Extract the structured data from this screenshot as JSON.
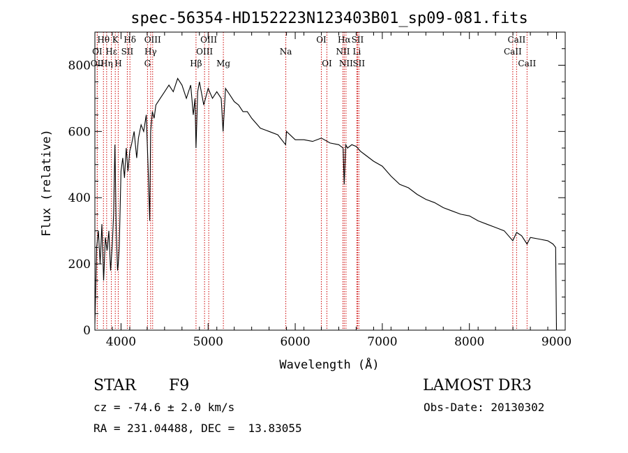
{
  "chart_data": {
    "type": "line",
    "title": "spec-56354-HD152223N123403B01_sp09-081.fits",
    "xlabel": "Wavelength (Å)",
    "ylabel": "Flux (relative)",
    "xlim": [
      3700,
      9100
    ],
    "ylim": [
      0,
      900
    ],
    "xticks": [
      4000,
      5000,
      6000,
      7000,
      8000,
      9000
    ],
    "yticks": [
      0,
      200,
      400,
      600,
      800
    ],
    "series": [
      {
        "name": "flux",
        "x": [
          3700,
          3720,
          3740,
          3760,
          3780,
          3800,
          3820,
          3840,
          3860,
          3880,
          3900,
          3915,
          3930,
          3945,
          3960,
          3968,
          3980,
          4000,
          4020,
          4040,
          4060,
          4080,
          4100,
          4120,
          4150,
          4180,
          4200,
          4230,
          4260,
          4290,
          4310,
          4330,
          4340,
          4360,
          4380,
          4400,
          4450,
          4500,
          4550,
          4600,
          4650,
          4700,
          4750,
          4800,
          4830,
          4850,
          4861,
          4880,
          4900,
          4950,
          5000,
          5050,
          5100,
          5150,
          5172,
          5200,
          5250,
          5300,
          5350,
          5400,
          5450,
          5500,
          5600,
          5700,
          5800,
          5890,
          5900,
          6000,
          6100,
          6200,
          6300,
          6400,
          6500,
          6550,
          6563,
          6580,
          6600,
          6650,
          6700,
          6750,
          6800,
          6900,
          7000,
          7100,
          7200,
          7300,
          7400,
          7500,
          7600,
          7700,
          7800,
          7900,
          8000,
          8100,
          8200,
          8300,
          8400,
          8498,
          8542,
          8600,
          8662,
          8700,
          8800,
          8900,
          8960,
          8990,
          9000
        ],
        "y": [
          20,
          250,
          300,
          200,
          320,
          150,
          280,
          240,
          300,
          180,
          260,
          350,
          560,
          300,
          180,
          200,
          250,
          480,
          520,
          460,
          550,
          480,
          540,
          560,
          600,
          520,
          580,
          620,
          600,
          650,
          500,
          330,
          600,
          660,
          640,
          680,
          700,
          720,
          740,
          720,
          760,
          740,
          700,
          740,
          650,
          700,
          550,
          720,
          750,
          680,
          730,
          700,
          720,
          700,
          600,
          730,
          710,
          690,
          680,
          660,
          660,
          640,
          610,
          600,
          590,
          560,
          600,
          575,
          575,
          570,
          580,
          565,
          560,
          550,
          440,
          560,
          550,
          560,
          555,
          540,
          530,
          510,
          495,
          465,
          440,
          430,
          410,
          395,
          385,
          370,
          360,
          350,
          345,
          330,
          320,
          310,
          300,
          270,
          295,
          285,
          260,
          280,
          275,
          270,
          260,
          250,
          0
        ]
      }
    ],
    "lines": [
      {
        "label": "Hθ",
        "wl": 3798,
        "row": 1
      },
      {
        "label": "K",
        "wl": 3934,
        "row": 1
      },
      {
        "label": "Hδ",
        "wl": 4102,
        "row": 1
      },
      {
        "label": "OIII",
        "wl": 4363,
        "row": 1
      },
      {
        "label": "OIII",
        "wl": 5007,
        "row": 1
      },
      {
        "label": "OI",
        "wl": 6300,
        "row": 1
      },
      {
        "label": "Hα",
        "wl": 6563,
        "row": 1
      },
      {
        "label": "SII",
        "wl": 6716,
        "row": 1
      },
      {
        "label": "CaII",
        "wl": 8542,
        "row": 1
      },
      {
        "label": "OI",
        "wl": 3727,
        "row": 2
      },
      {
        "label": "Hε",
        "wl": 3889,
        "row": 2
      },
      {
        "label": "SII",
        "wl": 4072,
        "row": 2
      },
      {
        "label": "Hγ",
        "wl": 4340,
        "row": 2
      },
      {
        "label": "OIII",
        "wl": 4959,
        "row": 2
      },
      {
        "label": "Na",
        "wl": 5892,
        "row": 2
      },
      {
        "label": "NII",
        "wl": 6548,
        "row": 2
      },
      {
        "label": "Li",
        "wl": 6708,
        "row": 2
      },
      {
        "label": "CaII",
        "wl": 8498,
        "row": 2
      },
      {
        "label": "OII",
        "wl": 3727,
        "row": 3
      },
      {
        "label": "Hη",
        "wl": 3835,
        "row": 3
      },
      {
        "label": "H",
        "wl": 3968,
        "row": 3
      },
      {
        "label": "G",
        "wl": 4304,
        "row": 3
      },
      {
        "label": "Hβ",
        "wl": 4861,
        "row": 3
      },
      {
        "label": "Mg",
        "wl": 5175,
        "row": 3
      },
      {
        "label": "OI",
        "wl": 6364,
        "row": 3
      },
      {
        "label": "NII",
        "wl": 6583,
        "row": 3
      },
      {
        "label": "SII",
        "wl": 6731,
        "row": 3
      },
      {
        "label": "CaII",
        "wl": 8662,
        "row": 3
      }
    ]
  },
  "info": {
    "object_type": "STAR",
    "subclass": "F9",
    "survey": "LAMOST DR3",
    "cz": "cz = -74.6 ± 2.0 km/s",
    "obs_date": "Obs-Date: 20130302",
    "coords": "RA = 231.04488, DEC =  13.83055"
  },
  "colors": {
    "axis": "#000000",
    "spectrum": "#000000",
    "line_marker": "#cc0000"
  }
}
